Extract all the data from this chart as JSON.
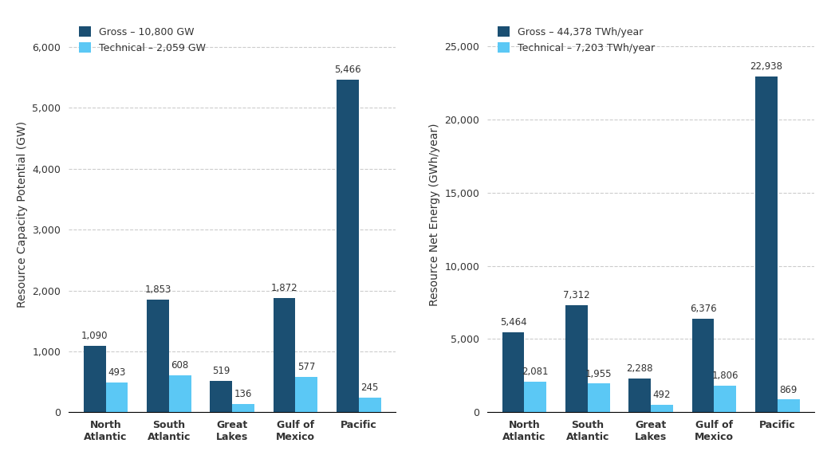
{
  "categories": [
    "North\nAtlantic",
    "South\nAtlantic",
    "Great\nLakes",
    "Gulf of\nMexico",
    "Pacific"
  ],
  "chart1": {
    "title": "",
    "ylabel": "Resource Capacity Potential (GW)",
    "gross_values": [
      1090,
      1853,
      519,
      1872,
      5466
    ],
    "technical_values": [
      493,
      608,
      136,
      577,
      245
    ],
    "gross_labels": [
      "1,090",
      "1,853",
      "519",
      "1,872",
      "5,466"
    ],
    "technical_labels": [
      "493",
      "608",
      "136",
      "577",
      "245"
    ],
    "ylim": [
      0,
      6500
    ],
    "yticks": [
      0,
      1000,
      2000,
      3000,
      4000,
      5000,
      6000
    ],
    "ytick_labels": [
      "0",
      "1,000",
      "2,000",
      "3,000",
      "4,000",
      "5,000",
      "6,000"
    ],
    "legend_gross": "Gross – 10,800 GW",
    "legend_technical": "Technical – 2,059 GW"
  },
  "chart2": {
    "title": "",
    "ylabel": "Resource Net Energy (GWh/year)",
    "gross_values": [
      5464,
      7312,
      2288,
      6376,
      22938
    ],
    "technical_values": [
      2081,
      1955,
      492,
      1806,
      869
    ],
    "gross_labels": [
      "5,464",
      "7,312",
      "2,288",
      "6,376",
      "22,938"
    ],
    "technical_labels": [
      "2,081",
      "1,955",
      "492",
      "1,806",
      "869"
    ],
    "ylim": [
      0,
      27000
    ],
    "yticks": [
      0,
      5000,
      10000,
      15000,
      20000,
      25000
    ],
    "ytick_labels": [
      "0",
      "5,000",
      "10,000",
      "15,000",
      "20,000",
      "25,000"
    ],
    "legend_gross": "Gross – 44,378 TWh/year",
    "legend_technical": "Technical – 7,203 TWh/year"
  },
  "color_gross": "#1B4F72",
  "color_technical": "#5BC8F5",
  "bar_width": 0.35,
  "background_color": "#FFFFFF",
  "grid_color": "#AAAAAA",
  "label_fontsize": 8.5,
  "axis_label_fontsize": 10,
  "tick_fontsize": 9,
  "legend_fontsize": 9,
  "annotation_fontsize": 8.5
}
